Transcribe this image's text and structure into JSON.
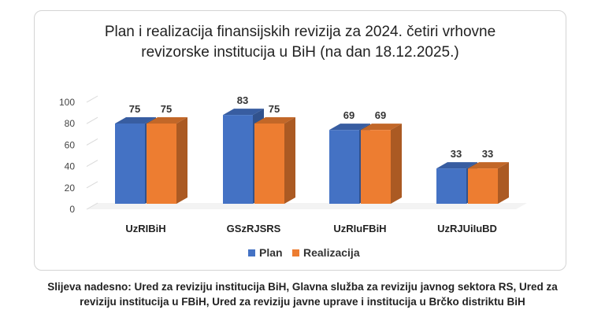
{
  "chart_data": {
    "type": "bar",
    "title_line1": "Plan i realizacija finansijskih  revizija za 2024. četiri vrhovne",
    "title_line2": "revizorske institucija u BiH (na dan 18.12.2025.)",
    "categories": [
      "UzRIBiH",
      "GSzRJSRS",
      "UzRIuFBiH",
      "UzRJUiIuBD"
    ],
    "series": [
      {
        "name": "Plan",
        "values": [
          75,
          83,
          69,
          33
        ],
        "color": "#4472C4"
      },
      {
        "name": "Realizacija",
        "values": [
          75,
          75,
          69,
          33
        ],
        "color": "#ED7D31"
      }
    ],
    "ylim": [
      0,
      100
    ],
    "yticks": [
      0,
      20,
      40,
      60,
      80,
      100
    ],
    "grid": false,
    "legend_position": "bottom",
    "three_d": true
  },
  "caption": {
    "line1": "Slijeva nadesno: Ured za reviziju institucija BiH, Glavna služba za reviziju javnog sektora RS, Ured za",
    "line2": "reviziju institucija u FBiH, Ured za reviziju javne uprave i institucija u Brčko distriktu BiH"
  }
}
